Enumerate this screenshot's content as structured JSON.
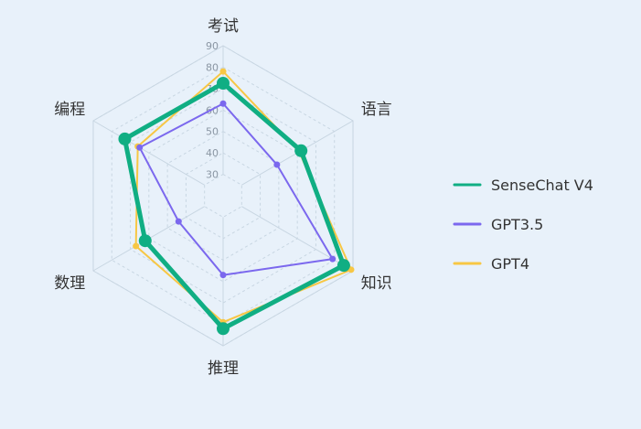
{
  "chart_data": {
    "type": "radar",
    "categories": [
      "考试",
      "语言",
      "知识",
      "推理",
      "数理",
      "编程"
    ],
    "ticks": [
      "30",
      "40",
      "50",
      "60",
      "70",
      "80",
      "90"
    ],
    "range": [
      20,
      90
    ],
    "legend_position": "right",
    "grid": true,
    "series": [
      {
        "name": "SenseChat V4",
        "color": "#10ae83",
        "values": [
          72.5,
          62,
          85,
          82,
          62,
          73
        ]
      },
      {
        "name": "GPT3.5",
        "color": "#7b68ee",
        "values": [
          63,
          49,
          79,
          57,
          44,
          65
        ]
      },
      {
        "name": "GPT4",
        "color": "#f7c744",
        "values": [
          78,
          61,
          89,
          79,
          67,
          66
        ]
      }
    ]
  }
}
